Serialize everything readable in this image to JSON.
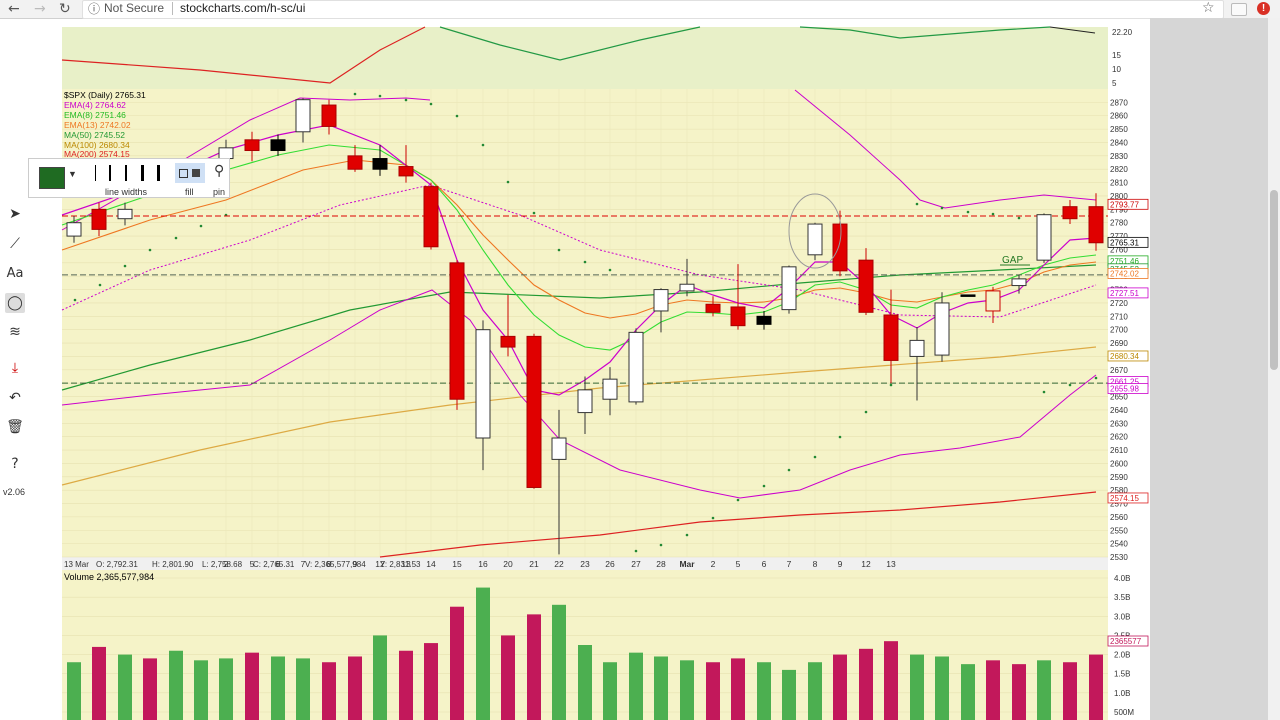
{
  "browser": {
    "not_secure": "Not Secure",
    "url": "stockcharts.com/h-sc/ui"
  },
  "legend": {
    "symbol": "$SPX (Daily) 2765.31",
    "ema4": "EMA(4) 2764.62",
    "ema8": "EMA(8) 2751.46",
    "ema13": "EMA(13) 2742.02",
    "ma50": "MA(50) 2745.52",
    "ma100": "MA(100) 2680.34",
    "ma200": "MA(200) 2574.15"
  },
  "colors": {
    "up": "#ffffff",
    "down": "#e00000",
    "ema4": "#cc00cc",
    "ema8": "#33dd33",
    "ema13": "#ee7722",
    "ma50": "#229933",
    "ma100": "#ddaa44",
    "ma200": "#dd2222",
    "bg": "#f5f3c8"
  },
  "ohlc_readout": {
    "date": "13 Mar",
    "open": "O: 2,792.31",
    "high": "H: 2,801.90",
    "low": "L: 2,758.68",
    "close": "C: 2,765.31",
    "volume": "V: 2,365,577,984",
    "y": "Y: 2,831.53"
  },
  "volume_label": "Volume 2,365,577,984",
  "annotation": "GAP",
  "palette": {
    "line_widths": "line widths",
    "fill": "fill",
    "pin": "pin"
  },
  "toolbar": {
    "version": "v2.06",
    "icons": [
      "pointer-icon",
      "line-icon",
      "text-icon",
      "ellipse-icon",
      "fib-icon",
      "save-icon",
      "undo-icon",
      "trash-icon",
      "help-icon"
    ]
  },
  "chart_data": {
    "type": "candlestick",
    "title": "$SPX (Daily) 2765.31",
    "x_tick_labels": [
      "2",
      "5",
      "6",
      "7",
      "8",
      "9",
      "12",
      "13",
      "14",
      "15",
      "16",
      "20",
      "21",
      "22",
      "23",
      "26",
      "27",
      "28",
      "Mar",
      "2",
      "5",
      "6",
      "7",
      "8",
      "9",
      "12",
      "13"
    ],
    "ylim": [
      2530,
      2880
    ],
    "y_ticks": [
      2530,
      2540,
      2550,
      2560,
      2570,
      2580,
      2590,
      2600,
      2610,
      2620,
      2630,
      2640,
      2650,
      2660,
      2670,
      2680,
      2690,
      2700,
      2710,
      2720,
      2730,
      2740,
      2750,
      2760,
      2770,
      2780,
      2790,
      2800,
      2810,
      2820,
      2830,
      2840,
      2850,
      2860,
      2870
    ],
    "price_tags": [
      {
        "value": 2793.77,
        "label": "2793.77",
        "color": "#cc0000"
      },
      {
        "value": 2765.31,
        "label": "2765.31",
        "color": "#000000"
      },
      {
        "value": 2751.46,
        "label": "2751.46",
        "color": "#22aa22"
      },
      {
        "value": 2745.52,
        "label": "2745.52",
        "color": "#229933"
      },
      {
        "value": 2742.02,
        "label": "2742.02",
        "color": "#ee7722"
      },
      {
        "value": 2727.51,
        "label": "2727.51",
        "color": "#cc00cc"
      },
      {
        "value": 2680.34,
        "label": "2680.34",
        "color": "#bb8800"
      },
      {
        "value": 2661.25,
        "label": "2661.25",
        "color": "#cc00cc"
      },
      {
        "value": 2655.98,
        "label": "2655.98",
        "color": "#cc00cc"
      },
      {
        "value": 2574.15,
        "label": "2574.15",
        "color": "#dd2222"
      }
    ],
    "horizontal_lines": [
      {
        "value": 2785,
        "color": "#dd0000"
      },
      {
        "value": 2741,
        "color": "#556655"
      },
      {
        "value": 2660,
        "color": "#336633"
      }
    ],
    "upper_panel_ticks": [
      "22.20",
      "15",
      "10",
      "5"
    ],
    "volume_ticks": [
      "4.0B",
      "3.5B",
      "3.0B",
      "2.5B",
      "2.0B",
      "1.5B",
      "1.0B",
      "500M"
    ],
    "volume_tag": "2365577",
    "candles": [
      {
        "x": 74,
        "o": 2770,
        "c": 2780,
        "h": 2785,
        "l": 2765,
        "up": true
      },
      {
        "x": 99,
        "o": 2790,
        "c": 2775,
        "h": 2795,
        "l": 2770,
        "up": false
      },
      {
        "x": 125,
        "o": 2783,
        "c": 2790,
        "h": 2795,
        "l": 2778,
        "up": true
      },
      {
        "x": 226,
        "o": 2828,
        "c": 2836,
        "h": 2842,
        "l": 2820,
        "up": true
      },
      {
        "x": 252,
        "o": 2842,
        "c": 2834,
        "h": 2848,
        "l": 2826,
        "up": false
      },
      {
        "x": 278,
        "o": 2842,
        "c": 2834,
        "h": 2846,
        "l": 2830,
        "up": false,
        "black": true
      },
      {
        "x": 303,
        "o": 2848,
        "c": 2872,
        "h": 2873,
        "l": 2840,
        "up": true
      },
      {
        "x": 329,
        "o": 2868,
        "c": 2852,
        "h": 2872,
        "l": 2846,
        "up": false
      },
      {
        "x": 355,
        "o": 2830,
        "c": 2820,
        "h": 2838,
        "l": 2818,
        "up": false
      },
      {
        "x": 380,
        "o": 2828,
        "c": 2820,
        "h": 2838,
        "l": 2815,
        "up": false,
        "black": true
      },
      {
        "x": 406,
        "o": 2822,
        "c": 2815,
        "h": 2838,
        "l": 2810,
        "up": false
      },
      {
        "x": 431,
        "o": 2807,
        "c": 2762,
        "h": 2810,
        "l": 2760,
        "up": false
      },
      {
        "x": 457,
        "o": 2750,
        "c": 2648,
        "h": 2752,
        "l": 2640,
        "up": false
      },
      {
        "x": 483,
        "o": 2619,
        "c": 2700,
        "h": 2707,
        "l": 2595,
        "up": true
      },
      {
        "x": 508,
        "o": 2695,
        "c": 2687,
        "h": 2726,
        "l": 2680,
        "up": false
      },
      {
        "x": 534,
        "o": 2695,
        "c": 2582,
        "h": 2697,
        "l": 2581,
        "up": false
      },
      {
        "x": 559,
        "o": 2603,
        "c": 2619,
        "h": 2640,
        "l": 2532,
        "up": true
      },
      {
        "x": 585,
        "o": 2638,
        "c": 2655,
        "h": 2665,
        "l": 2622,
        "up": true
      },
      {
        "x": 610,
        "o": 2648,
        "c": 2663,
        "h": 2672,
        "l": 2636,
        "up": true
      },
      {
        "x": 636,
        "o": 2646,
        "c": 2698,
        "h": 2701,
        "l": 2644,
        "up": true
      },
      {
        "x": 661,
        "o": 2714,
        "c": 2730,
        "h": 2731,
        "l": 2698,
        "up": true
      },
      {
        "x": 687,
        "o": 2729,
        "c": 2734,
        "h": 2753,
        "l": 2725,
        "up": true
      },
      {
        "x": 713,
        "o": 2719,
        "c": 2713,
        "h": 2725,
        "l": 2710,
        "up": false
      },
      {
        "x": 738,
        "o": 2717,
        "c": 2703,
        "h": 2749,
        "l": 2700,
        "up": false
      },
      {
        "x": 764,
        "o": 2710,
        "c": 2704,
        "h": 2714,
        "l": 2700,
        "up": false,
        "black": true
      },
      {
        "x": 789,
        "o": 2715,
        "c": 2747,
        "h": 2748,
        "l": 2712,
        "up": true
      },
      {
        "x": 815,
        "o": 2756,
        "c": 2779,
        "h": 2780,
        "l": 2752,
        "up": true
      },
      {
        "x": 840,
        "o": 2779,
        "c": 2744,
        "h": 2789,
        "l": 2740,
        "up": false
      },
      {
        "x": 866,
        "o": 2752,
        "c": 2713,
        "h": 2761,
        "l": 2711,
        "up": false
      },
      {
        "x": 891,
        "o": 2711,
        "c": 2677,
        "h": 2730,
        "l": 2660,
        "up": false
      },
      {
        "x": 917,
        "o": 2680,
        "c": 2692,
        "h": 2702,
        "l": 2647,
        "up": true
      },
      {
        "x": 942,
        "o": 2681,
        "c": 2720,
        "h": 2728,
        "l": 2676,
        "up": true
      },
      {
        "x": 968,
        "o": 2726,
        "c": 2726,
        "h": 2726,
        "l": 2726,
        "up": false,
        "black": true
      },
      {
        "x": 993,
        "o": 2714,
        "c": 2729,
        "h": 2732,
        "l": 2705,
        "up": false,
        "hollowred": true
      },
      {
        "x": 1019,
        "o": 2733,
        "c": 2738,
        "h": 2741,
        "l": 2727,
        "up": true
      },
      {
        "x": 1044,
        "o": 2752,
        "c": 2786,
        "h": 2787,
        "l": 2750,
        "up": true
      },
      {
        "x": 1070,
        "o": 2792,
        "c": 2783,
        "h": 2797,
        "l": 2779,
        "up": false
      },
      {
        "x": 1096,
        "o": 2792,
        "c": 2765,
        "h": 2802,
        "l": 2759,
        "up": false
      }
    ],
    "volume": [
      {
        "x": 74,
        "v": 1.8,
        "up": true
      },
      {
        "x": 99,
        "v": 2.2,
        "up": false
      },
      {
        "x": 125,
        "v": 2.0,
        "up": true
      },
      {
        "x": 150,
        "v": 1.9,
        "up": false
      },
      {
        "x": 176,
        "v": 2.1,
        "up": true
      },
      {
        "x": 201,
        "v": 1.85,
        "up": true
      },
      {
        "x": 226,
        "v": 1.9,
        "up": true
      },
      {
        "x": 252,
        "v": 2.05,
        "up": false
      },
      {
        "x": 278,
        "v": 1.95,
        "up": true
      },
      {
        "x": 303,
        "v": 1.9,
        "up": true
      },
      {
        "x": 329,
        "v": 1.8,
        "up": false
      },
      {
        "x": 355,
        "v": 1.95,
        "up": false
      },
      {
        "x": 380,
        "v": 2.5,
        "up": true
      },
      {
        "x": 406,
        "v": 2.1,
        "up": false
      },
      {
        "x": 431,
        "v": 2.3,
        "up": false
      },
      {
        "x": 457,
        "v": 3.25,
        "up": false
      },
      {
        "x": 483,
        "v": 3.75,
        "up": true
      },
      {
        "x": 508,
        "v": 2.5,
        "up": false
      },
      {
        "x": 534,
        "v": 3.05,
        "up": false
      },
      {
        "x": 559,
        "v": 3.3,
        "up": true
      },
      {
        "x": 585,
        "v": 2.25,
        "up": true
      },
      {
        "x": 610,
        "v": 1.8,
        "up": true
      },
      {
        "x": 636,
        "v": 2.05,
        "up": true
      },
      {
        "x": 661,
        "v": 1.95,
        "up": true
      },
      {
        "x": 687,
        "v": 1.85,
        "up": true
      },
      {
        "x": 713,
        "v": 1.8,
        "up": false
      },
      {
        "x": 738,
        "v": 1.9,
        "up": false
      },
      {
        "x": 764,
        "v": 1.8,
        "up": true
      },
      {
        "x": 789,
        "v": 1.6,
        "up": true
      },
      {
        "x": 815,
        "v": 1.8,
        "up": true
      },
      {
        "x": 840,
        "v": 2.0,
        "up": false
      },
      {
        "x": 866,
        "v": 2.15,
        "up": false
      },
      {
        "x": 891,
        "v": 2.35,
        "up": false
      },
      {
        "x": 917,
        "v": 2.0,
        "up": true
      },
      {
        "x": 942,
        "v": 1.95,
        "up": true
      },
      {
        "x": 968,
        "v": 1.75,
        "up": true
      },
      {
        "x": 993,
        "v": 1.85,
        "up": false
      },
      {
        "x": 1019,
        "v": 1.75,
        "up": false
      },
      {
        "x": 1044,
        "v": 1.85,
        "up": true
      },
      {
        "x": 1070,
        "v": 1.8,
        "up": false
      },
      {
        "x": 1096,
        "v": 2.0,
        "up": false
      }
    ]
  }
}
